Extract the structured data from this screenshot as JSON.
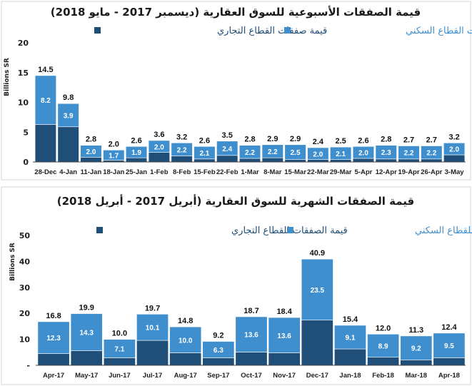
{
  "colors": {
    "residential": "#3f8fce",
    "commercial": "#1f4e79",
    "bar_edge": "#ffffff",
    "axis": "#444444"
  },
  "legend": {
    "commercial_label": "قيمة صفقات القطاع التجاري",
    "residential_label": "قيمة صفقات القطاع السكني",
    "monthly_commercial_label": "قيمة الصفقات للقطاع التجاري",
    "monthly_residential_label": "قيمة الصفقات للقطاع السكني"
  },
  "chart_data": [
    {
      "type": "bar",
      "stacked": true,
      "title": "قيمة الصفقات الأسبوعية للسوق العقارية (ديسمبر 2017 - مايو 2018)",
      "ylabel": "Billions SR",
      "ylim": [
        0,
        20
      ],
      "yticks": [
        "0",
        "5",
        "10",
        "15",
        "20"
      ],
      "grid": false,
      "legend_position": "top",
      "categories": [
        "28-Dec",
        "4-Jan",
        "11-Jan",
        "18-Jan",
        "25-Jan",
        "1-Feb",
        "8-Feb",
        "15-Feb",
        "22-Feb",
        "1-Mar",
        "8-Mar",
        "15-Mar",
        "22-Mar",
        "29-Mar",
        "5-Apr",
        "12-Apr",
        "19-Apr",
        "26-Apr",
        "3-May"
      ],
      "totals": [
        14.5,
        9.8,
        2.8,
        2.0,
        2.6,
        3.6,
        3.2,
        2.6,
        3.5,
        2.8,
        2.9,
        2.9,
        2.4,
        2.5,
        2.6,
        2.8,
        2.7,
        2.7,
        3.2
      ],
      "total_labels": [
        "14.5",
        "9.8",
        "2.8",
        "2.0",
        "2.6",
        "3.6",
        "3.2",
        "2.6",
        "3.5",
        "2.8",
        "2.9",
        "2.9",
        "2.4",
        "2.5",
        "2.6",
        "2.8",
        "2.7",
        "2.7",
        "3.2"
      ],
      "series": [
        {
          "key": "residential",
          "values": [
            8.2,
            3.9,
            2.0,
            1.7,
            1.9,
            2.0,
            2.2,
            2.1,
            2.4,
            2.2,
            2.2,
            2.5,
            2.0,
            2.1,
            2.0,
            2.3,
            2.2,
            2.2,
            2.0
          ],
          "labels": [
            "8.2",
            "3.9",
            "2.0",
            "1.7",
            "1.9",
            "2.0",
            "2.2",
            "2.1",
            "2.4",
            "2.2",
            "2.2",
            "2.5",
            "2.0",
            "2.1",
            "2.0",
            "2.3",
            "2.2",
            "2.2",
            "2.0"
          ]
        },
        {
          "key": "commercial",
          "values": [
            6.3,
            5.9,
            0.8,
            0.3,
            0.7,
            1.6,
            1.0,
            0.5,
            1.1,
            0.6,
            0.7,
            0.4,
            0.4,
            0.4,
            0.6,
            0.5,
            0.5,
            0.5,
            1.2
          ]
        }
      ]
    },
    {
      "type": "bar",
      "stacked": true,
      "title": "قيمة الصفقات الشهرية للسوق العقارية (أبريل 2017 - أبريل 2018)",
      "ylabel": "Billions SR",
      "ylim": [
        0,
        50
      ],
      "yticks": [
        "-",
        "10",
        "20",
        "30",
        "40",
        "50"
      ],
      "grid": false,
      "legend_position": "top",
      "categories": [
        "Apr-17",
        "May-17",
        "Jun-17",
        "Jul-17",
        "Aug-17",
        "Sep-17",
        "Oct-17",
        "Nov-17",
        "Dec-17",
        "Jan-18",
        "Feb-18",
        "Mar-18",
        "Apr-18"
      ],
      "totals": [
        16.8,
        19.9,
        10.0,
        19.7,
        14.8,
        9.2,
        18.7,
        18.4,
        40.9,
        15.4,
        12.0,
        11.3,
        12.4
      ],
      "total_labels": [
        "16.8",
        "19.9",
        "10.0",
        "19.7",
        "14.8",
        "9.2",
        "18.7",
        "18.4",
        "40.9",
        "15.4",
        "12.0",
        "11.3",
        "12.4"
      ],
      "series": [
        {
          "key": "residential",
          "values": [
            12.3,
            14.3,
            7.1,
            10.1,
            10.0,
            6.3,
            13.6,
            13.6,
            23.5,
            9.1,
            8.9,
            9.2,
            9.5
          ],
          "labels": [
            "12.3",
            "14.3",
            "7.1",
            "10.1",
            "10.0",
            "6.3",
            "13.6",
            "13.6",
            "23.5",
            "9.1",
            "8.9",
            "9.2",
            "9.5"
          ]
        },
        {
          "key": "commercial",
          "values": [
            4.5,
            5.6,
            2.9,
            9.6,
            4.8,
            2.9,
            5.1,
            4.8,
            17.4,
            6.3,
            3.1,
            2.1,
            2.9
          ]
        }
      ]
    }
  ]
}
